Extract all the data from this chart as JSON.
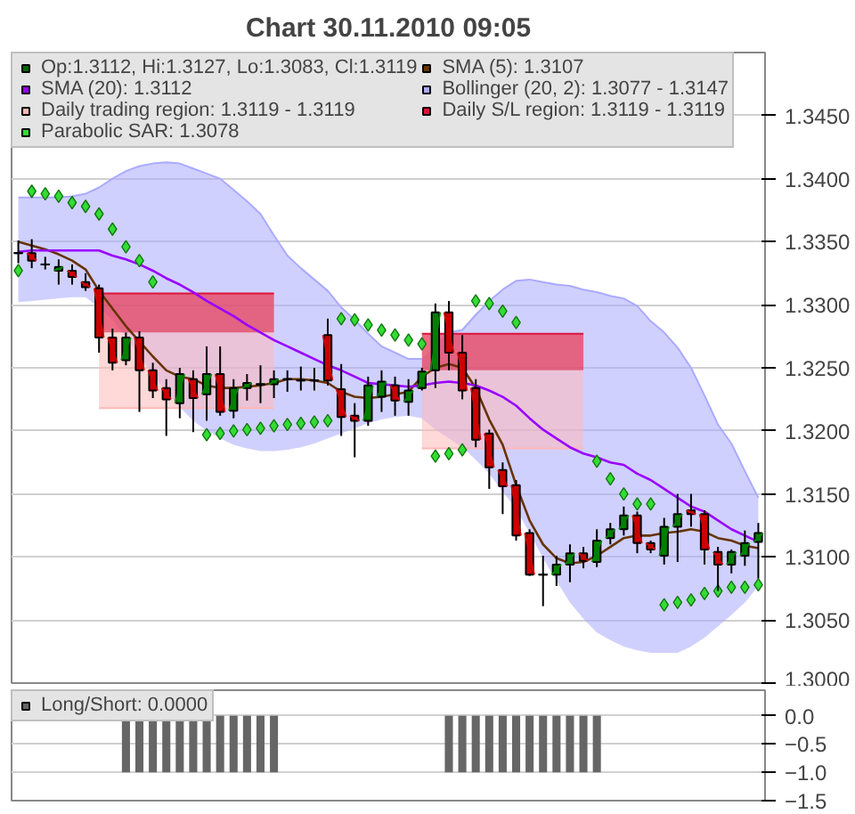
{
  "chart_data": [
    {
      "type": "candlestick",
      "title": "Chart 30.11.2010 09:05",
      "categories": [
        null,
        null,
        null,
        null,
        null,
        null,
        null,
        null,
        null,
        null,
        null,
        null,
        null,
        null,
        null,
        null,
        null,
        null,
        null,
        null,
        null,
        null,
        null,
        null,
        null,
        null,
        null,
        null,
        null,
        null,
        null,
        null,
        null,
        null,
        null,
        null,
        null,
        null,
        null,
        null,
        null,
        null,
        null,
        null,
        null,
        null,
        null,
        null,
        null,
        null,
        null,
        null,
        null,
        null,
        null,
        null
      ],
      "ylim": [
        1.3,
        1.35
      ],
      "yticks": [
        {
          "value": 1.3,
          "label": "1.3000"
        },
        {
          "value": 1.305,
          "label": "1.3050"
        },
        {
          "value": 1.31,
          "label": "1.3100"
        },
        {
          "value": 1.315,
          "label": "1.3150"
        },
        {
          "value": 1.32,
          "label": "1.3200"
        },
        {
          "value": 1.325,
          "label": "1.3250"
        },
        {
          "value": 1.33,
          "label": "1.3300"
        },
        {
          "value": 1.335,
          "label": "1.3350"
        },
        {
          "value": 1.34,
          "label": "1.3400"
        },
        {
          "value": 1.345,
          "label": "1.3450"
        }
      ],
      "grid": "y",
      "legend": "top",
      "tick_labels": "y",
      "series": [
        {
          "type": "candlestick",
          "name": "Op:1.3112, Hi:1.3127, Lo:1.3083, Cl:1.3119",
          "color": "#006600",
          "colors": [
            "#000000",
            "#cc0000",
            "#000000",
            "#008000",
            "#cc0000",
            "#cc0000",
            "#cc0000",
            "#cc0000",
            "#008000",
            "#cc0000",
            "#cc0000",
            "#cc0000",
            "#008000",
            "#cc0000",
            "#008000",
            "#cc0000",
            "#008000",
            "#008000",
            "#000000",
            "#008000",
            "#000000",
            "#000000",
            "#000000",
            "#cc0000",
            "#cc0000",
            "#cc0000",
            "#008000",
            "#008000",
            "#cc0000",
            "#008000",
            "#008000",
            "#008000",
            "#cc0000",
            "#cc0000",
            "#cc0000",
            "#cc0000",
            "#cc0000",
            "#cc0000",
            "#cc0000",
            "#000000",
            "#008000",
            "#008000",
            "#cc0000",
            "#008000",
            "#008000",
            "#008000",
            "#cc0000",
            "#cc0000",
            "#008000",
            "#008000",
            "#cc0000",
            "#cc0000",
            "#cc0000",
            "#008000",
            "#008000",
            "#008000"
          ],
          "ohlc": [
            [
              1.3341,
              1.3351,
              1.3333,
              1.3341
            ],
            [
              1.3341,
              1.3352,
              1.3329,
              1.3335
            ],
            [
              1.3332,
              1.3338,
              1.3328,
              1.3332
            ],
            [
              1.3327,
              1.3336,
              1.3316,
              1.333
            ],
            [
              1.3327,
              1.3332,
              1.3316,
              1.3322
            ],
            [
              1.3318,
              1.3325,
              1.3311,
              1.3314
            ],
            [
              1.3313,
              1.3316,
              1.3262,
              1.3274
            ],
            [
              1.3274,
              1.3281,
              1.3248,
              1.3254
            ],
            [
              1.3256,
              1.3278,
              1.3252,
              1.3274
            ],
            [
              1.3274,
              1.3279,
              1.3215,
              1.3248
            ],
            [
              1.3248,
              1.3254,
              1.3226,
              1.3232
            ],
            [
              1.3234,
              1.3241,
              1.3196,
              1.3225
            ],
            [
              1.3222,
              1.325,
              1.321,
              1.3245
            ],
            [
              1.3241,
              1.3248,
              1.3199,
              1.3226
            ],
            [
              1.3229,
              1.3267,
              1.3208,
              1.3245
            ],
            [
              1.3245,
              1.3267,
              1.3212,
              1.3215
            ],
            [
              1.3216,
              1.3241,
              1.321,
              1.3234
            ],
            [
              1.3234,
              1.3245,
              1.3224,
              1.3238
            ],
            [
              1.3237,
              1.3252,
              1.3222,
              1.3237
            ],
            [
              1.3237,
              1.3248,
              1.3226,
              1.3241
            ],
            [
              1.3241,
              1.3248,
              1.3231,
              1.3241
            ],
            [
              1.324,
              1.3251,
              1.3232,
              1.324
            ],
            [
              1.324,
              1.325,
              1.3232,
              1.324
            ],
            [
              1.3276,
              1.3289,
              1.3236,
              1.324
            ],
            [
              1.3233,
              1.3253,
              1.3196,
              1.3211
            ],
            [
              1.3212,
              1.3222,
              1.3179,
              1.3208
            ],
            [
              1.3208,
              1.3243,
              1.3204,
              1.3236
            ],
            [
              1.3227,
              1.3248,
              1.3215,
              1.3239
            ],
            [
              1.3236,
              1.3243,
              1.3212,
              1.3224
            ],
            [
              1.3223,
              1.3241,
              1.3212,
              1.3232
            ],
            [
              1.3234,
              1.325,
              1.3232,
              1.3247
            ],
            [
              1.3248,
              1.3301,
              1.3234,
              1.3294
            ],
            [
              1.3294,
              1.3303,
              1.3248,
              1.3262
            ],
            [
              1.3262,
              1.3276,
              1.3225,
              1.3232
            ],
            [
              1.3234,
              1.3241,
              1.3187,
              1.3193
            ],
            [
              1.3198,
              1.3201,
              1.3154,
              1.3171
            ],
            [
              1.3169,
              1.3175,
              1.3134,
              1.3156
            ],
            [
              1.3157,
              1.3161,
              1.3113,
              1.3117
            ],
            [
              1.3119,
              1.3122,
              1.3085,
              1.3086
            ],
            [
              1.3086,
              1.3101,
              1.3061,
              1.3086
            ],
            [
              1.3086,
              1.3101,
              1.3077,
              1.3094
            ],
            [
              1.3094,
              1.311,
              1.308,
              1.3103
            ],
            [
              1.3103,
              1.3108,
              1.3091,
              1.3097
            ],
            [
              1.3096,
              1.3122,
              1.3092,
              1.3113
            ],
            [
              1.3115,
              1.3127,
              1.311,
              1.3122
            ],
            [
              1.3122,
              1.314,
              1.3117,
              1.3133
            ],
            [
              1.3133,
              1.3136,
              1.3103,
              1.3111
            ],
            [
              1.3111,
              1.3113,
              1.3103,
              1.3106
            ],
            [
              1.3101,
              1.3131,
              1.3094,
              1.3124
            ],
            [
              1.3124,
              1.315,
              1.3096,
              1.3134
            ],
            [
              1.3137,
              1.315,
              1.3124,
              1.3134
            ],
            [
              1.3134,
              1.3137,
              1.3094,
              1.3106
            ],
            [
              1.3104,
              1.3108,
              1.3073,
              1.3094
            ],
            [
              1.3094,
              1.3106,
              1.3087,
              1.3104
            ],
            [
              1.3101,
              1.3121,
              1.3093,
              1.3111
            ],
            [
              1.3112,
              1.3127,
              1.3083,
              1.3119
            ]
          ]
        },
        {
          "type": "line",
          "name": "SMA (5): 1.3107",
          "color": "#663300",
          "values": [
            1.335,
            1.3347,
            1.3344,
            1.334,
            1.3335,
            1.3328,
            1.3311,
            1.3297,
            1.3283,
            1.3271,
            1.3259,
            1.3248,
            1.3243,
            1.3241,
            1.3236,
            1.3234,
            1.3234,
            1.3235,
            1.3236,
            1.3238,
            1.3241,
            1.3241,
            1.324,
            1.3238,
            1.3231,
            1.3227,
            1.3226,
            1.3227,
            1.3229,
            1.3231,
            1.3243,
            1.325,
            1.3253,
            1.325,
            1.3234,
            1.3209,
            1.3189,
            1.3157,
            1.3129,
            1.311,
            1.3099,
            1.3095,
            1.3096,
            1.3101,
            1.3108,
            1.3115,
            1.3117,
            1.3117,
            1.3119,
            1.312,
            1.3122,
            1.312,
            1.3115,
            1.3113,
            1.3109,
            1.3107
          ]
        },
        {
          "type": "line",
          "name": "SMA (20): 1.3112",
          "color": "#9900ff",
          "values": [
            1.3342,
            1.3343,
            1.3343,
            1.3343,
            1.3343,
            1.3343,
            1.3343,
            1.3339,
            1.3336,
            1.3332,
            1.3327,
            1.3321,
            1.3316,
            1.331,
            1.3303,
            1.3297,
            1.3291,
            1.3284,
            1.3278,
            1.3272,
            1.3267,
            1.3262,
            1.3257,
            1.3252,
            1.3248,
            1.3243,
            1.3238,
            1.3237,
            1.3236,
            1.3235,
            1.3236,
            1.3238,
            1.3239,
            1.3238,
            1.3236,
            1.3232,
            1.3227,
            1.322,
            1.321,
            1.3201,
            1.3194,
            1.3187,
            1.3182,
            1.3179,
            1.3175,
            1.3173,
            1.3166,
            1.3161,
            1.3154,
            1.3147,
            1.314,
            1.3136,
            1.3129,
            1.3122,
            1.3117,
            1.3112
          ]
        },
        {
          "type": "line",
          "name": "Bollinger (20, 2): 1.3077 - 1.3147",
          "color": "#aaaaff",
          "upper": [
            1.3385,
            1.3385,
            1.3385,
            1.3385,
            1.3386,
            1.3388,
            1.3393,
            1.34,
            1.3406,
            1.341,
            1.3412,
            1.3413,
            1.3412,
            1.3408,
            1.3404,
            1.34,
            1.3391,
            1.3382,
            1.3372,
            1.3355,
            1.3339,
            1.3329,
            1.332,
            1.3311,
            1.3298,
            1.3288,
            1.3277,
            1.3267,
            1.3262,
            1.3257,
            1.3257,
            1.3269,
            1.3278,
            1.328,
            1.3292,
            1.3303,
            1.3312,
            1.3319,
            1.332,
            1.3318,
            1.3316,
            1.3315,
            1.3312,
            1.331,
            1.3307,
            1.3305,
            1.3299,
            1.3287,
            1.3278,
            1.3266,
            1.325,
            1.3228,
            1.3205,
            1.319,
            1.3168,
            1.3147
          ],
          "values": [
            1.3385,
            1.3385,
            1.3385,
            1.3385,
            1.3386,
            1.3388,
            1.3393,
            1.34,
            1.3406,
            1.341,
            1.3412,
            1.3413,
            1.3412,
            1.3408,
            1.3404,
            1.34,
            1.3391,
            1.3382,
            1.3372,
            1.3355,
            1.3339,
            1.3329,
            1.332,
            1.3311,
            1.3298,
            1.3288,
            1.3277,
            1.3267,
            1.3262,
            1.3257,
            1.3257,
            null,
            1.3278,
            1.328,
            1.3292,
            1.3303,
            1.3312,
            1.3319,
            1.332,
            1.3318,
            1.3316,
            1.3315,
            1.3312,
            1.331,
            1.3307,
            1.3305,
            1.3299,
            1.3287,
            1.3278,
            1.3266,
            1.325,
            1.3228,
            1.3205,
            1.319,
            1.3168,
            1.3147
          ],
          "lower": [
            1.3302,
            1.3303,
            1.3304,
            1.3305,
            1.3306,
            1.3306,
            1.3298,
            1.3288,
            1.3274,
            1.3259,
            1.3245,
            1.3231,
            1.3219,
            1.3208,
            1.32,
            1.3194,
            1.3189,
            1.3186,
            1.3184,
            1.3184,
            1.3185,
            1.3187,
            1.319,
            1.3194,
            1.3198,
            1.3202,
            1.3206,
            1.3209,
            1.3211,
            1.3212,
            1.321,
            1.3201,
            1.3194,
            1.3187,
            1.3177,
            1.3166,
            1.3152,
            1.3138,
            1.3119,
            1.3099,
            1.3081,
            1.3064,
            1.3051,
            1.304,
            1.3034,
            1.3029,
            1.3026,
            1.3024,
            1.3024,
            1.3024,
            1.3029,
            1.3036,
            1.3045,
            1.3054,
            1.3064,
            1.3077
          ]
        },
        {
          "type": "line",
          "name": "Daily trading region: 1.3119 - 1.3119",
          "color": "#ffb8b8",
          "upper": [
            null,
            null,
            null,
            null,
            null,
            null,
            1.3309,
            1.3309,
            1.3309,
            1.3309,
            1.3309,
            1.3309,
            1.3309,
            1.3309,
            1.3309,
            1.3309,
            1.3309,
            1.3309,
            1.3309,
            1.3309,
            null,
            null,
            null,
            null,
            null,
            null,
            null,
            null,
            null,
            null,
            1.3277,
            1.3277,
            1.3277,
            1.3277,
            1.3277,
            1.3277,
            1.3277,
            1.3277,
            1.3277,
            1.3277,
            1.3277,
            1.3277,
            1.3277,
            null,
            null,
            null,
            null,
            null,
            null,
            null,
            null,
            null,
            null,
            null,
            null,
            null
          ],
          "values": [
            null,
            null,
            null,
            null,
            null,
            null,
            1.3218,
            1.3218,
            1.3218,
            1.3218,
            1.3218,
            1.3218,
            1.3218,
            1.3218,
            1.3218,
            1.3218,
            1.3218,
            1.3218,
            1.3218,
            1.3218,
            null,
            null,
            null,
            null,
            null,
            null,
            null,
            null,
            null,
            null,
            1.3186,
            1.3186,
            1.3186,
            1.3186,
            1.3186,
            1.3186,
            1.3186,
            1.3186,
            1.3186,
            1.3186,
            1.3186,
            1.3186,
            1.3186,
            null,
            null,
            null,
            null,
            null,
            null,
            null,
            null,
            null,
            null,
            null,
            null,
            null
          ],
          "lower": [
            null,
            null,
            null,
            null,
            null,
            null,
            1.3218,
            1.3218,
            1.3218,
            1.3218,
            1.3218,
            1.3218,
            1.3218,
            1.3218,
            1.3218,
            1.3218,
            1.3218,
            1.3218,
            1.3218,
            1.3218,
            null,
            null,
            null,
            null,
            null,
            null,
            null,
            null,
            null,
            null,
            1.3186,
            1.3186,
            1.3186,
            1.3186,
            1.3186,
            1.3186,
            1.3186,
            1.3186,
            1.3186,
            1.3186,
            1.3186,
            1.3186,
            1.3186,
            null,
            null,
            null,
            null,
            null,
            null,
            null,
            null,
            null,
            null,
            null,
            null,
            null
          ]
        },
        {
          "type": "line",
          "name": "Daily S/L region: 1.3119 - 1.3119",
          "color": "#dc143c",
          "upper": [
            null,
            null,
            null,
            null,
            null,
            null,
            1.3309,
            1.3309,
            1.3309,
            1.3309,
            1.3309,
            1.3309,
            1.3309,
            1.3309,
            1.3309,
            1.3309,
            1.3309,
            1.3309,
            1.3309,
            1.3309,
            null,
            null,
            null,
            null,
            null,
            null,
            null,
            null,
            null,
            null,
            1.3277,
            1.3277,
            1.3277,
            1.3277,
            1.3277,
            1.3277,
            1.3277,
            1.3277,
            1.3277,
            1.3277,
            1.3277,
            1.3277,
            1.3277,
            null,
            null,
            null,
            null,
            null,
            null,
            null,
            null,
            null,
            null,
            null,
            null,
            null
          ],
          "values": [
            null,
            null,
            null,
            null,
            null,
            null,
            1.3309,
            1.3309,
            1.3309,
            1.3309,
            1.3309,
            1.3309,
            1.3309,
            1.3309,
            1.3309,
            1.3309,
            1.3309,
            1.3309,
            1.3309,
            1.3309,
            null,
            null,
            null,
            null,
            null,
            null,
            null,
            null,
            null,
            null,
            1.3277,
            1.3277,
            1.3277,
            1.3277,
            1.3277,
            1.3277,
            1.3277,
            1.3277,
            1.3277,
            1.3277,
            1.3277,
            1.3277,
            1.3277,
            null,
            null,
            null,
            null,
            null,
            null,
            null,
            null,
            null,
            null,
            null,
            null,
            null
          ],
          "lower": [
            null,
            null,
            null,
            null,
            null,
            null,
            1.3278,
            1.3278,
            1.3278,
            1.3278,
            1.3278,
            1.3278,
            1.3278,
            1.3278,
            1.3278,
            1.3278,
            1.3278,
            1.3278,
            1.3278,
            1.3278,
            null,
            null,
            null,
            null,
            null,
            null,
            null,
            null,
            null,
            null,
            1.3248,
            1.3248,
            1.3248,
            1.3248,
            1.3248,
            1.3248,
            1.3248,
            1.3248,
            1.3248,
            1.3248,
            1.3248,
            1.3248,
            1.3248,
            null,
            null,
            null,
            null,
            null,
            null,
            null,
            null,
            null,
            null,
            null,
            null,
            null
          ]
        },
        {
          "type": "scatter",
          "name": "Parabolic SAR: 1.3078",
          "color": "#33dd33",
          "marker": "diamond",
          "values": [
            1.3327,
            1.339,
            1.3388,
            1.3386,
            1.3381,
            1.3378,
            1.3372,
            1.336,
            1.3346,
            1.3335,
            1.3318,
            null,
            null,
            null,
            1.3197,
            1.3198,
            1.32,
            1.3201,
            1.3202,
            1.3204,
            1.3205,
            1.3206,
            1.3207,
            1.3208,
            1.3289,
            1.3288,
            1.3284,
            1.328,
            1.3276,
            1.3272,
            1.3269,
            1.318,
            1.3182,
            1.3185,
            1.3303,
            1.3301,
            1.3295,
            1.3286,
            null,
            null,
            null,
            null,
            null,
            1.3176,
            1.3162,
            1.315,
            1.3142,
            1.3142,
            1.3062,
            1.3064,
            1.3066,
            1.3071,
            1.3073,
            1.3076,
            1.3076,
            1.3078
          ]
        }
      ]
    },
    {
      "type": "bar",
      "categories": [
        null,
        null,
        null,
        null,
        null,
        null,
        null,
        null,
        null,
        null,
        null,
        null,
        null,
        null,
        null,
        null,
        null,
        null,
        null,
        null,
        null,
        null,
        null,
        null,
        null,
        null,
        null,
        null,
        null,
        null,
        null,
        null,
        null,
        null,
        null,
        null,
        null,
        null,
        null,
        null,
        null,
        null,
        null,
        null,
        null,
        null,
        null,
        null,
        null,
        null,
        null,
        null,
        null,
        null,
        null,
        null
      ],
      "ylim": [
        -1.5,
        0.45
      ],
      "yticks": [
        {
          "value": 0,
          "label": "0.0"
        },
        {
          "value": -0.5,
          "label": "−0.5"
        },
        {
          "value": -1,
          "label": "−1.0"
        },
        {
          "value": -1.5,
          "label": "−1.5"
        }
      ],
      "grid": "y",
      "legend": "top",
      "tick_labels": "y",
      "series": [
        {
          "name": "Long/Short: 0.0000",
          "color": "#666666",
          "values": [
            0,
            0,
            0,
            0,
            0,
            0,
            0,
            0,
            -1,
            -1,
            -1,
            -1,
            -1,
            -1,
            -1,
            -1,
            -1,
            -1,
            -1,
            -1,
            0,
            0,
            0,
            0,
            0,
            0,
            0,
            0,
            0,
            0,
            0,
            0,
            -1,
            -1,
            -1,
            -1,
            -1,
            -1,
            -1,
            -1,
            -1,
            -1,
            -1,
            -1,
            0,
            0,
            0,
            0,
            0,
            0,
            0,
            0,
            0,
            0,
            0,
            0
          ]
        }
      ]
    }
  ]
}
